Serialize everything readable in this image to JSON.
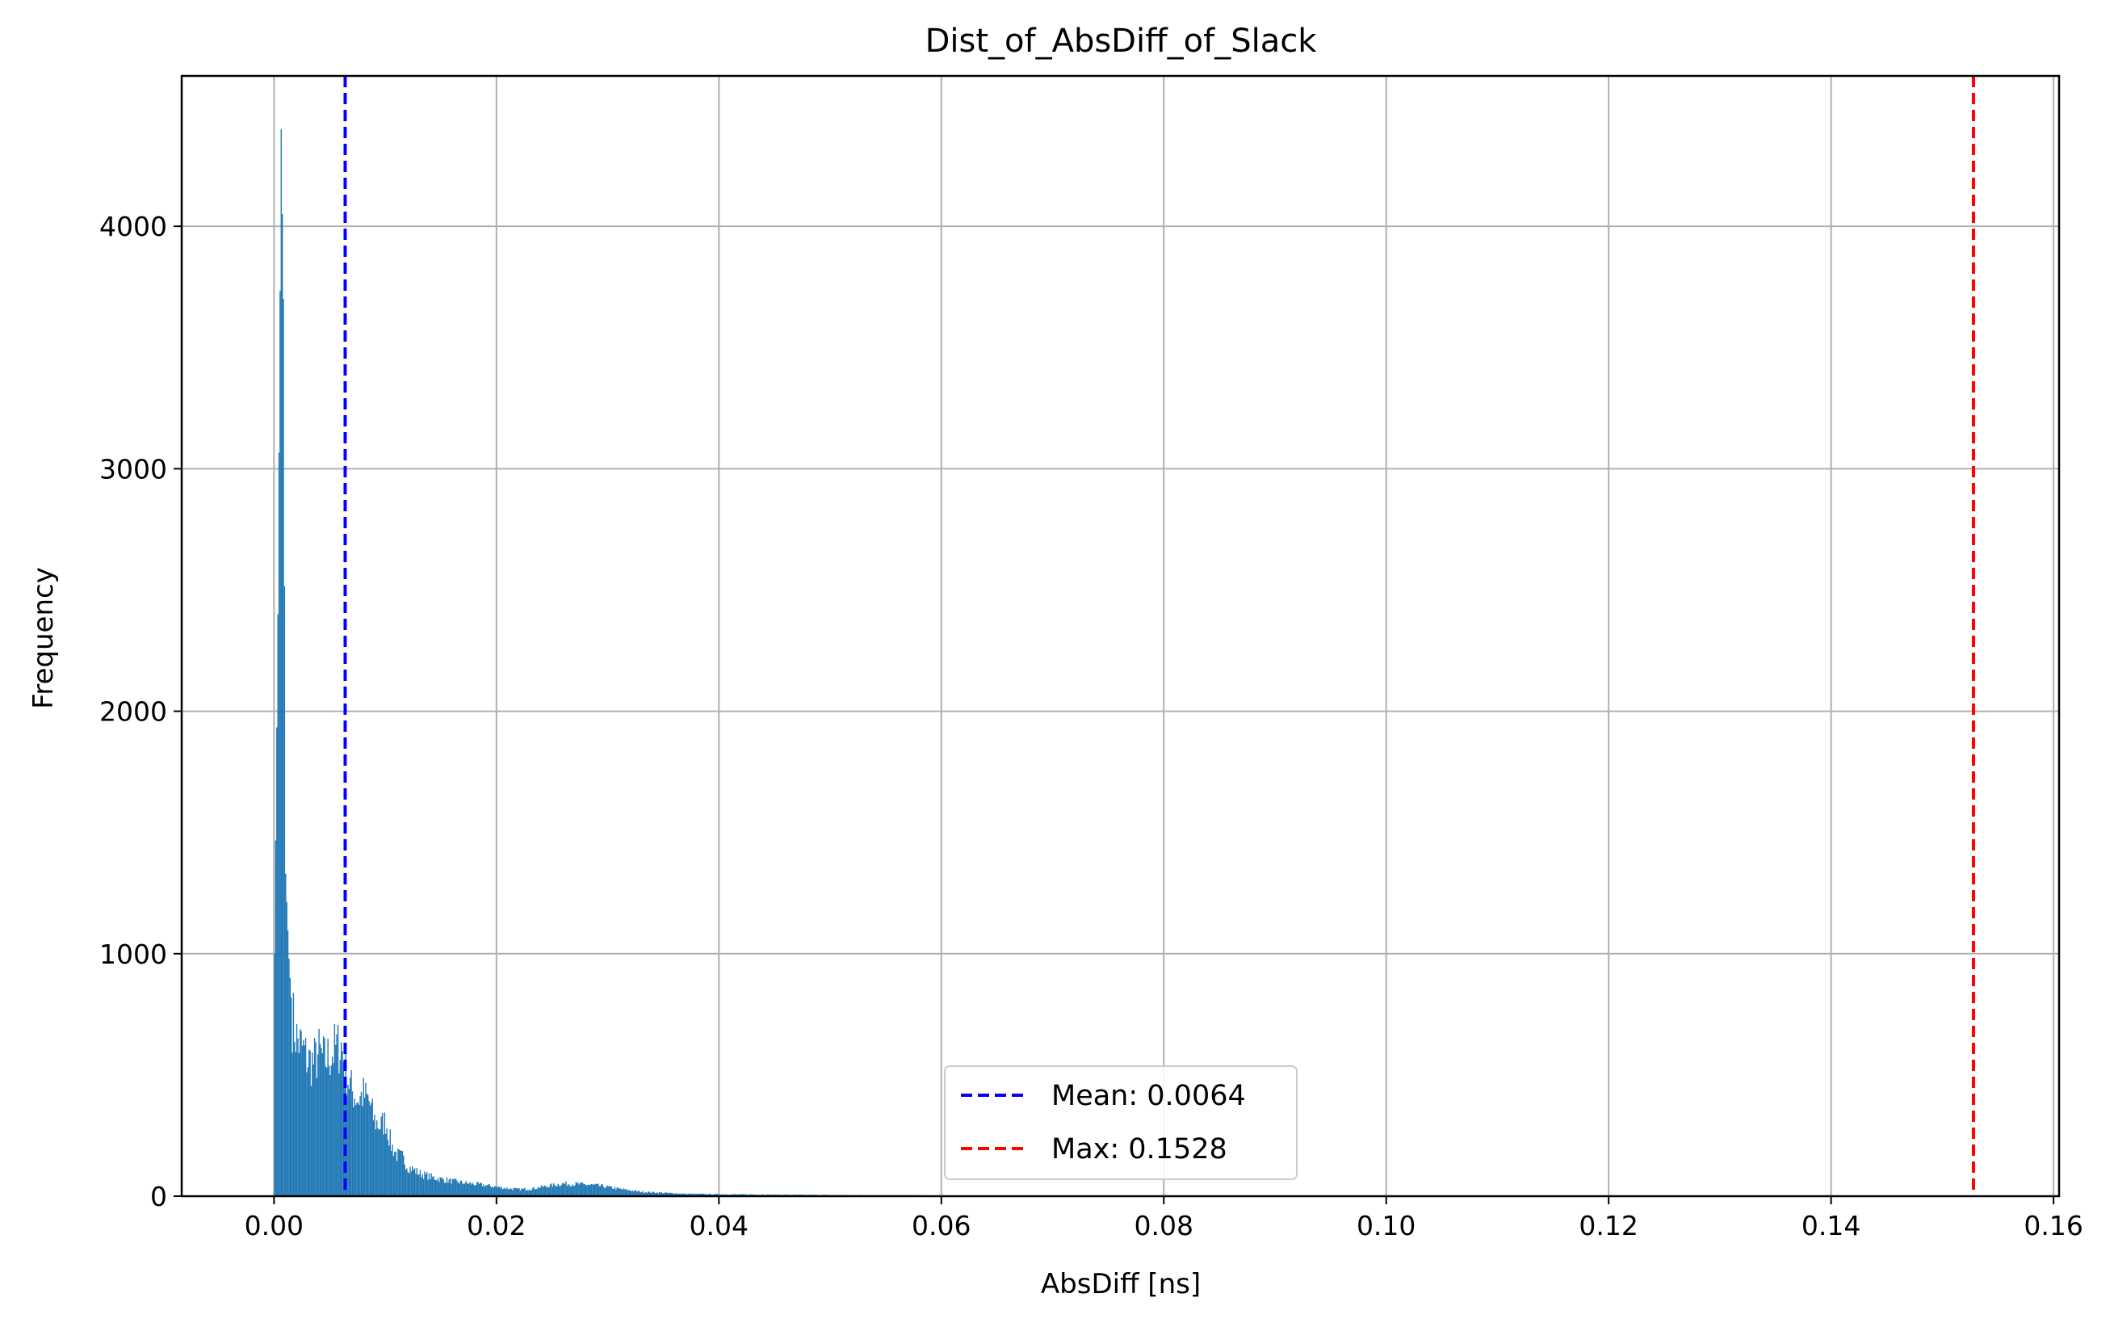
{
  "chart_data": {
    "type": "histogram",
    "title": "Dist_of_AbsDiff_of_Slack",
    "xlabel": "AbsDiff [ns]",
    "ylabel": "Frequency",
    "xlim": [
      -0.0083,
      0.1605
    ],
    "ylim": [
      0,
      4620
    ],
    "xticks": [
      0.0,
      0.02,
      0.04,
      0.06,
      0.08,
      0.1,
      0.12,
      0.14,
      0.16
    ],
    "xtick_labels": [
      "0.00",
      "0.02",
      "0.04",
      "0.06",
      "0.08",
      "0.10",
      "0.12",
      "0.14",
      "0.16"
    ],
    "yticks": [
      0,
      1000,
      2000,
      3000,
      4000
    ],
    "ytick_labels": [
      "0",
      "1000",
      "2000",
      "3000",
      "4000"
    ],
    "grid": true,
    "bar_color": "#1f77b4",
    "histogram_points": [
      [
        0.0,
        1000
      ],
      [
        0.0003,
        2400
      ],
      [
        0.0006,
        4400
      ],
      [
        0.0008,
        3700
      ],
      [
        0.001,
        1330
      ],
      [
        0.0013,
        980
      ],
      [
        0.0016,
        740
      ],
      [
        0.002,
        650
      ],
      [
        0.0025,
        610
      ],
      [
        0.003,
        560
      ],
      [
        0.0035,
        550
      ],
      [
        0.004,
        590
      ],
      [
        0.0045,
        560
      ],
      [
        0.005,
        580
      ],
      [
        0.0055,
        610
      ],
      [
        0.006,
        620
      ],
      [
        0.0065,
        500
      ],
      [
        0.007,
        430
      ],
      [
        0.0075,
        400
      ],
      [
        0.008,
        420
      ],
      [
        0.0085,
        390
      ],
      [
        0.009,
        310
      ],
      [
        0.0095,
        290
      ],
      [
        0.01,
        310
      ],
      [
        0.0105,
        210
      ],
      [
        0.011,
        170
      ],
      [
        0.0115,
        160
      ],
      [
        0.012,
        120
      ],
      [
        0.0125,
        110
      ],
      [
        0.013,
        95
      ],
      [
        0.014,
        80
      ],
      [
        0.015,
        70
      ],
      [
        0.016,
        62
      ],
      [
        0.017,
        55
      ],
      [
        0.018,
        50
      ],
      [
        0.019,
        45
      ],
      [
        0.02,
        38
      ],
      [
        0.021,
        32
      ],
      [
        0.022,
        28
      ],
      [
        0.023,
        30
      ],
      [
        0.024,
        38
      ],
      [
        0.025,
        45
      ],
      [
        0.026,
        52
      ],
      [
        0.027,
        50
      ],
      [
        0.028,
        48
      ],
      [
        0.029,
        44
      ],
      [
        0.03,
        38
      ],
      [
        0.031,
        30
      ],
      [
        0.032,
        24
      ],
      [
        0.033,
        18
      ],
      [
        0.035,
        14
      ],
      [
        0.037,
        10
      ],
      [
        0.04,
        8
      ],
      [
        0.043,
        7
      ],
      [
        0.046,
        6
      ],
      [
        0.05,
        5
      ],
      [
        0.055,
        4
      ],
      [
        0.06,
        3
      ],
      [
        0.065,
        1
      ],
      [
        0.07,
        0
      ]
    ],
    "bin_width": 0.0001,
    "reference_lines": [
      {
        "name": "Mean: 0.0064",
        "x": 0.0064,
        "color": "#0000ff",
        "style": "dashed"
      },
      {
        "name": "Max: 0.1528",
        "x": 0.1528,
        "color": "#ff0000",
        "style": "dashed"
      }
    ],
    "legend_position": "lower center"
  }
}
